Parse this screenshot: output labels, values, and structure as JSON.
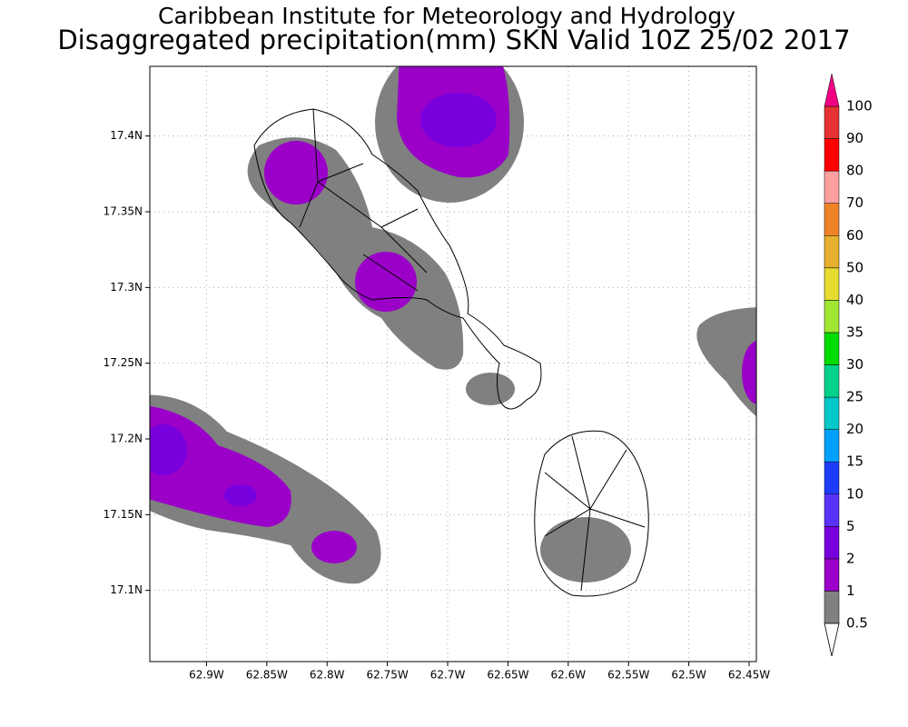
{
  "map": {
    "title": "Caribbean Institute for Meteorology and Hydrology",
    "subtitle": "Disaggregated precipitation(mm) SKN Valid 10Z 25/02 2017",
    "lonlim": [
      -62.947,
      -62.444
    ],
    "latlim": [
      17.053,
      17.446
    ],
    "lon_ticks": [
      {
        "value": -62.9,
        "label": "62.9W"
      },
      {
        "value": -62.85,
        "label": "62.85W"
      },
      {
        "value": -62.8,
        "label": "62.8W"
      },
      {
        "value": -62.75,
        "label": "62.75W"
      },
      {
        "value": -62.7,
        "label": "62.7W"
      },
      {
        "value": -62.65,
        "label": "62.65W"
      },
      {
        "value": -62.6,
        "label": "62.6W"
      },
      {
        "value": -62.55,
        "label": "62.55W"
      },
      {
        "value": -62.5,
        "label": "62.5W"
      },
      {
        "value": -62.45,
        "label": "62.45W"
      }
    ],
    "lat_ticks": [
      {
        "value": 17.4,
        "label": "17.4N"
      },
      {
        "value": 17.35,
        "label": "17.35N"
      },
      {
        "value": 17.3,
        "label": "17.3N"
      },
      {
        "value": 17.25,
        "label": "17.25N"
      },
      {
        "value": 17.2,
        "label": "17.2N"
      },
      {
        "value": 17.15,
        "label": "17.15N"
      },
      {
        "value": 17.1,
        "label": "17.1N"
      }
    ],
    "grid": true,
    "colorbar": {
      "levels": [
        0.5,
        1,
        2,
        5,
        10,
        15,
        20,
        25,
        30,
        35,
        40,
        50,
        60,
        70,
        80,
        90,
        100
      ],
      "colors": [
        "#808080",
        "#9a00c8",
        "#7800dc",
        "#5a32ff",
        "#1e3cff",
        "#00a0ff",
        "#00c8c8",
        "#00d28c",
        "#00dc00",
        "#a0e632",
        "#e6dc32",
        "#e6af2d",
        "#f08228",
        "#ffa0a0",
        "#ff0000",
        "#e63232"
      ],
      "under_color": "#ffffff",
      "over_color": "#f00082"
    }
  }
}
